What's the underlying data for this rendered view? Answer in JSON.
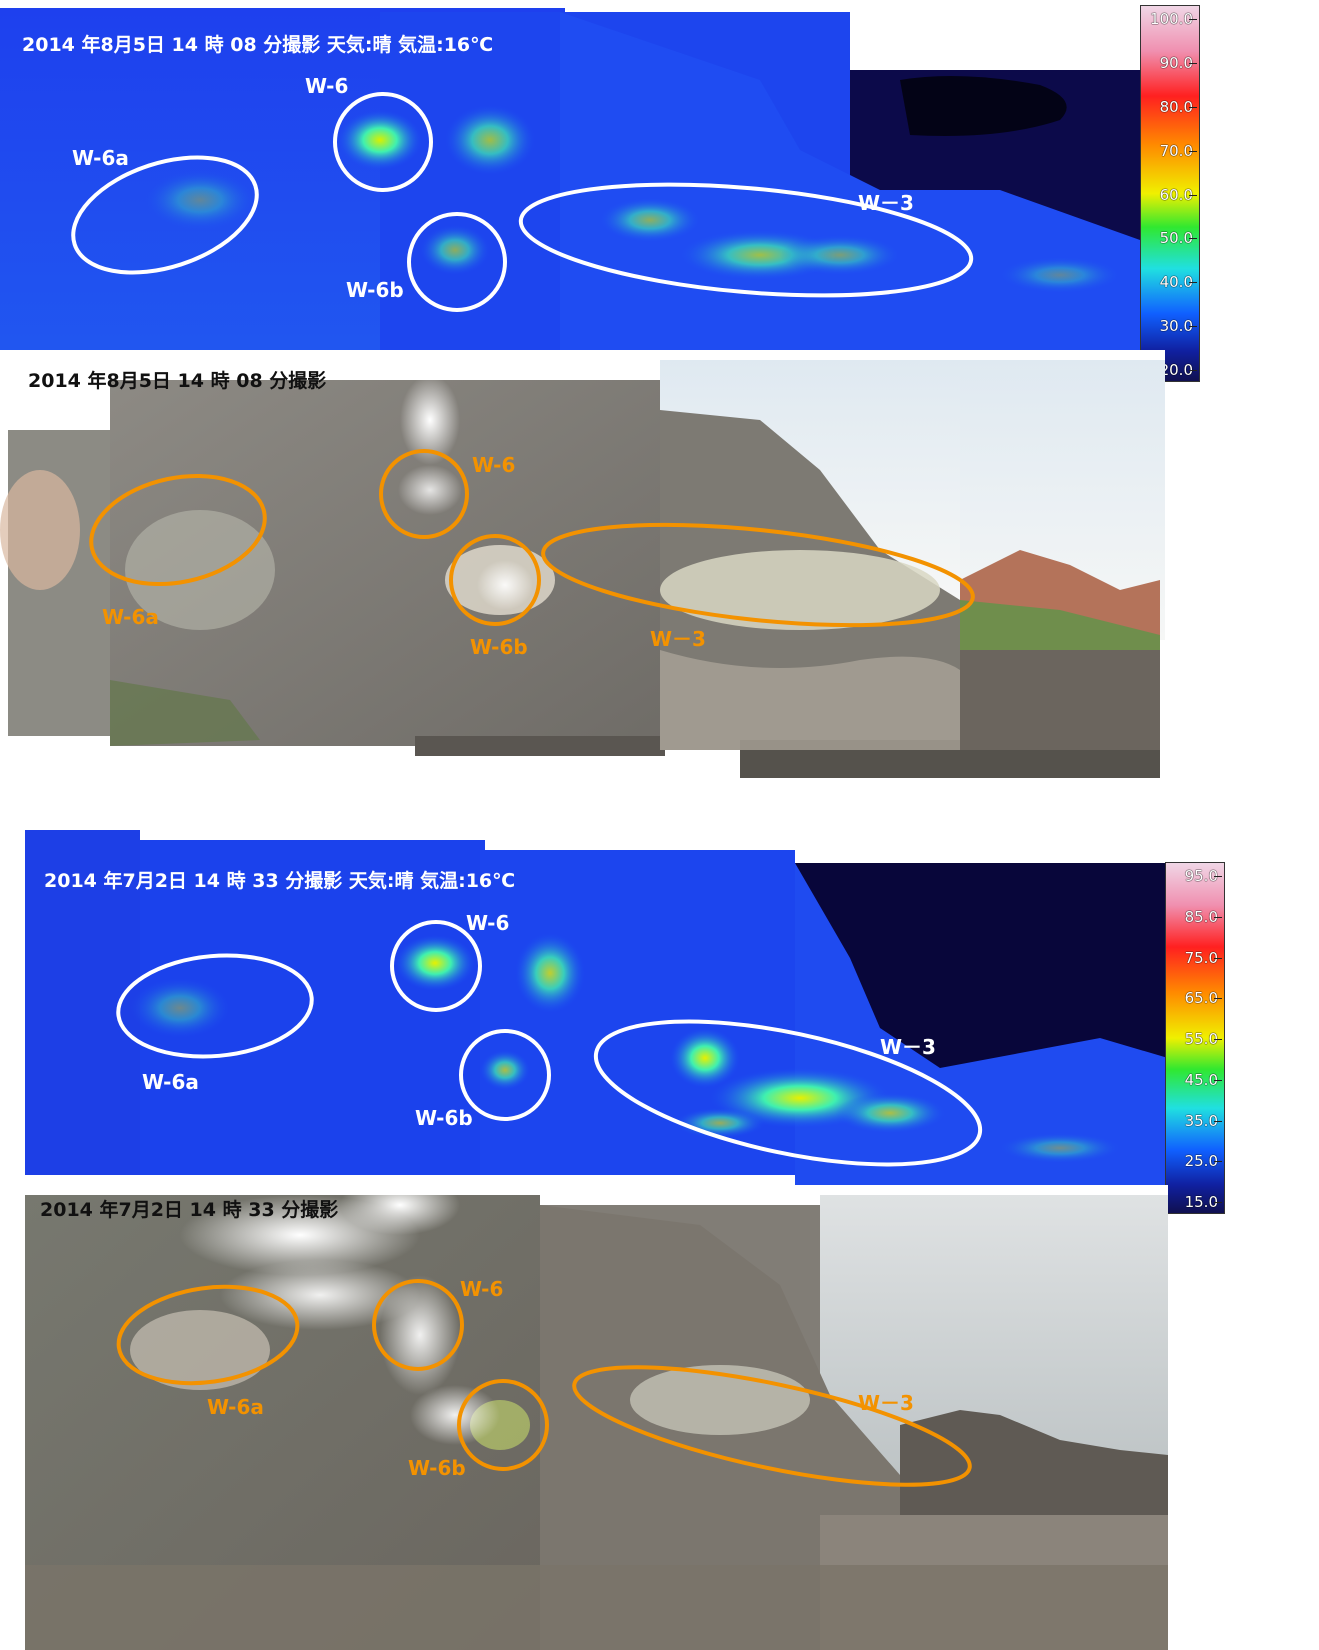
{
  "panels": {
    "thermal_aug": {
      "caption": "2014 年8月5日 14 時 08 分撮影 天気:晴 気温:16℃"
    },
    "photo_aug": {
      "caption": "2014 年8月5日 14 時 08 分撮影"
    },
    "thermal_jul": {
      "caption": "2014 年7月2日 14 時 33 分撮影 天気:晴 気温:16℃"
    },
    "photo_jul": {
      "caption": "2014 年7月2日 14 時 33 分撮影"
    }
  },
  "labels": {
    "w6": "W-6",
    "w6a": "W-6a",
    "w6b": "W-6b",
    "w3": "W－3"
  },
  "scales": {
    "aug": [
      "100.0",
      "90.0",
      "80.0",
      "70.0",
      "60.0",
      "50.0",
      "40.0",
      "30.0",
      "20.0"
    ],
    "jul": [
      "95.0",
      "85.0",
      "75.0",
      "65.0",
      "55.0",
      "45.0",
      "35.0",
      "25.0",
      "15.0"
    ]
  },
  "colors": {
    "thermal_base": "#1a3cf0",
    "hot_area": "#3ff0b0",
    "marker_white": "#ffffff",
    "marker_orange": "#f39200"
  }
}
